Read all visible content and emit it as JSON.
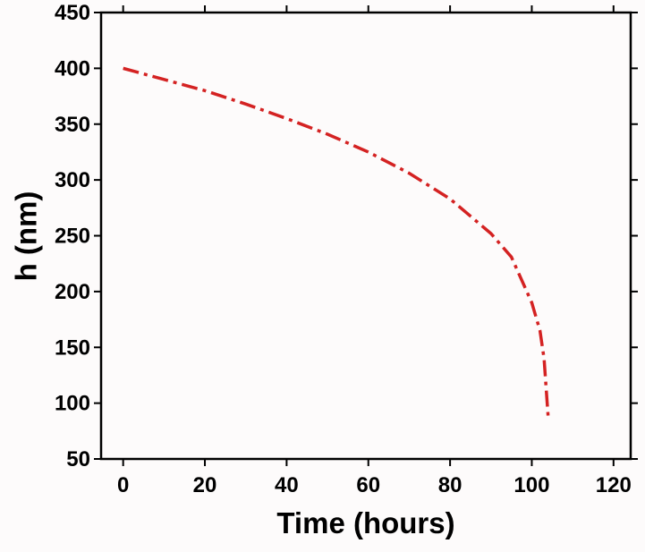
{
  "chart_data": {
    "type": "line",
    "x_label": "Time (hours)",
    "y_label": "h (nm)",
    "x": [
      0,
      10,
      20,
      30,
      40,
      50,
      60,
      70,
      80,
      90,
      95,
      100,
      102,
      103,
      104
    ],
    "series": [
      {
        "name": "h",
        "color": "#d42222",
        "values": [
          400,
          390,
          380,
          368,
          355,
          341,
          325,
          306,
          283,
          252,
          231,
          190,
          165,
          140,
          88
        ]
      }
    ],
    "xlim": [
      -5.4,
      124.2
    ],
    "xticks": [
      0,
      20,
      40,
      60,
      80,
      100,
      120
    ],
    "ylim": [
      50,
      450
    ],
    "yticks": [
      50,
      100,
      150,
      200,
      250,
      300,
      350,
      400,
      450
    ]
  }
}
